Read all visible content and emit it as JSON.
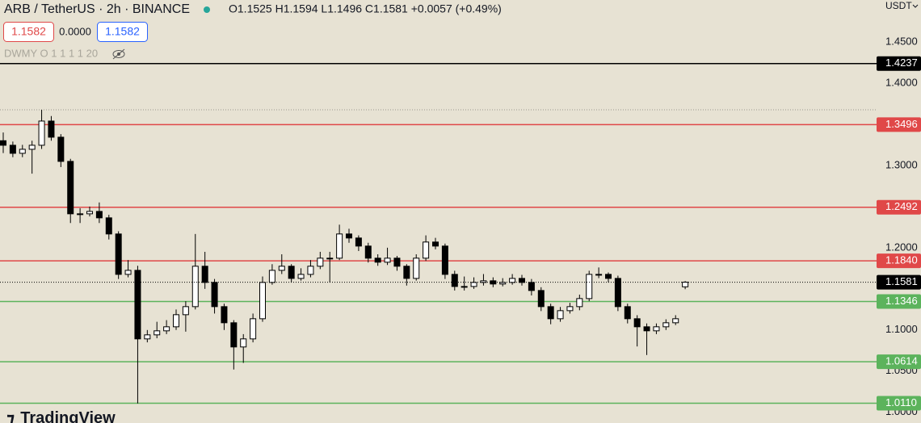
{
  "header": {
    "symbol": "ARB / TetherUS · 2h · BINANCE",
    "ohlc": "O1.1525  H1.1594  L1.1496  C1.1581  +0.0057 (+0.49%)",
    "sell": "1.1582",
    "spread": "0.0000",
    "buy": "1.1582",
    "intervals": "DWMY O 1 1 1 1 20",
    "currency": "USDT",
    "brand": "TradingView"
  },
  "chart_data": {
    "type": "candlestick",
    "open": [
      1.33,
      1.3245,
      1.3147,
      1.3196,
      1.3245,
      1.3539,
      1.3343,
      1.3049,
      1.2412,
      1.2412,
      1.2441,
      1.2363,
      1.2167,
      1.1676,
      1.1725,
      1.0892,
      1.0941,
      1.099,
      1.1039,
      1.1186,
      1.1284,
      1.1775,
      1.1578,
      1.1284,
      1.1088,
      1.0794,
      1.0892,
      1.1137,
      1.1578,
      1.1725,
      1.1775,
      1.1627,
      1.1676,
      1.1775,
      1.1873,
      1.1873,
      1.2167,
      1.2118,
      1.202,
      1.1873,
      1.1824,
      1.1873,
      1.1775,
      1.1627,
      1.1873,
      1.2069,
      1.202,
      1.1676,
      1.1529,
      1.1529,
      1.1578,
      1.1598,
      1.1559,
      1.1578,
      1.1627,
      1.1578,
      1.148,
      1.1284,
      1.1137,
      1.1235,
      1.1284,
      1.1382,
      1.1676,
      1.1676,
      1.1627,
      1.1284,
      1.1137,
      1.1039,
      1.099,
      1.1039,
      1.1088,
      1.1525
    ],
    "high": [
      1.34,
      1.329,
      1.325,
      1.33,
      1.3676,
      1.36,
      1.338,
      1.308,
      1.248,
      1.25,
      1.255,
      1.24,
      1.22,
      1.185,
      1.178,
      1.1,
      1.11,
      1.112,
      1.125,
      1.135,
      1.2167,
      1.195,
      1.162,
      1.132,
      1.112,
      1.095,
      1.12,
      1.165,
      1.18,
      1.192,
      1.18,
      1.175,
      1.185,
      1.195,
      1.195,
      1.228,
      1.223,
      1.215,
      1.206,
      1.192,
      1.2,
      1.19,
      1.18,
      1.192,
      1.215,
      1.212,
      1.205,
      1.172,
      1.165,
      1.164,
      1.168,
      1.164,
      1.163,
      1.168,
      1.167,
      1.162,
      1.152,
      1.132,
      1.128,
      1.133,
      1.143,
      1.172,
      1.176,
      1.17,
      1.166,
      1.132,
      1.118,
      1.108,
      1.108,
      1.113,
      1.118,
      1.1594
    ],
    "low": [
      1.315,
      1.31,
      1.31,
      1.29,
      1.32,
      1.33,
      1.298,
      1.23,
      1.23,
      1.238,
      1.23,
      1.21,
      1.162,
      1.164,
      1.0108,
      1.085,
      1.09,
      1.095,
      1.1,
      1.098,
      1.125,
      1.15,
      1.12,
      1.1,
      1.052,
      1.06,
      1.085,
      1.11,
      1.155,
      1.168,
      1.158,
      1.16,
      1.164,
      1.174,
      1.158,
      1.185,
      1.206,
      1.196,
      1.182,
      1.178,
      1.179,
      1.172,
      1.154,
      1.16,
      1.184,
      1.198,
      1.162,
      1.148,
      1.148,
      1.15,
      1.154,
      1.152,
      1.153,
      1.155,
      1.154,
      1.142,
      1.123,
      1.107,
      1.11,
      1.12,
      1.124,
      1.135,
      1.163,
      1.158,
      1.123,
      1.108,
      1.08,
      1.0696,
      1.095,
      1.1,
      1.106,
      1.1496
    ],
    "close": [
      1.3245,
      1.3147,
      1.3196,
      1.3245,
      1.3539,
      1.3343,
      1.3049,
      1.2412,
      1.2412,
      1.2441,
      1.2363,
      1.2167,
      1.1676,
      1.1725,
      1.0892,
      1.0941,
      1.099,
      1.1039,
      1.1186,
      1.1284,
      1.1775,
      1.1578,
      1.1284,
      1.1088,
      1.0794,
      1.0892,
      1.1137,
      1.1578,
      1.1725,
      1.1775,
      1.1627,
      1.1676,
      1.1775,
      1.1873,
      1.1873,
      1.2167,
      1.2118,
      1.202,
      1.1873,
      1.1824,
      1.1873,
      1.1775,
      1.1627,
      1.1873,
      1.2069,
      1.202,
      1.1676,
      1.1529,
      1.1529,
      1.1578,
      1.1598,
      1.1559,
      1.1578,
      1.1627,
      1.1578,
      1.148,
      1.1284,
      1.1137,
      1.1235,
      1.1284,
      1.1382,
      1.1676,
      1.1676,
      1.1627,
      1.1284,
      1.1137,
      1.1039,
      1.099,
      1.1039,
      1.1088,
      1.1137,
      1.1581
    ],
    "up_color": "#ffffff",
    "down_color": "#000000",
    "wick_color": "#000000",
    "ylim": [
      0.987,
      1.501
    ],
    "yticks": [
      {
        "value": 1.45,
        "label": "1.4500"
      },
      {
        "value": 1.4,
        "label": "1.4000"
      },
      {
        "value": 1.3,
        "label": "1.3000"
      },
      {
        "value": 1.2,
        "label": "1.2000"
      },
      {
        "value": 1.1,
        "label": "1.1000"
      },
      {
        "value": 1.05,
        "label": "1.0500"
      },
      {
        "value": 1.0,
        "label": "1.0000"
      }
    ],
    "grid": false,
    "levels": [
      {
        "value": 1.4237,
        "label": "1.4237",
        "color": "#000000"
      },
      {
        "value": 1.3496,
        "label": "1.3496",
        "color": "#e04848"
      },
      {
        "value": 1.2492,
        "label": "1.2492",
        "color": "#e04848"
      },
      {
        "value": 1.184,
        "label": "1.1840",
        "color": "#e04848"
      },
      {
        "value": 1.1346,
        "label": "1.1346",
        "color": "#5cb35c"
      },
      {
        "value": 1.0614,
        "label": "1.0614",
        "color": "#5cb35c"
      },
      {
        "value": 1.011,
        "label": "1.0110",
        "color": "#5cb35c"
      }
    ],
    "price_line": {
      "value": 1.1581,
      "label": "1.1581",
      "color": "#000000"
    }
  }
}
